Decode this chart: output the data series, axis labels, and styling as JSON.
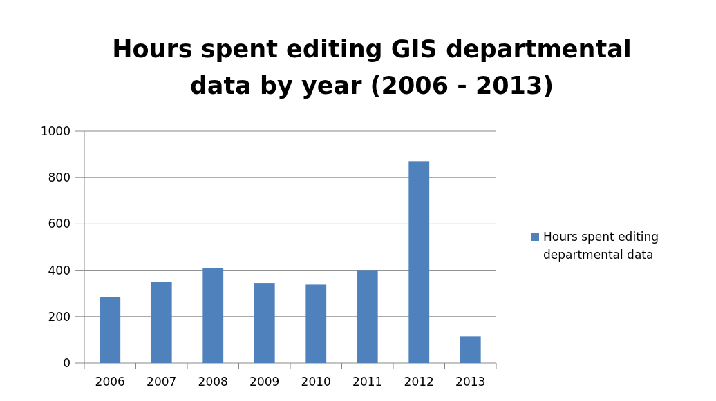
{
  "chart_data": {
    "type": "bar",
    "title": "Hours spent editing GIS departmental data by year (2006 - 2013)",
    "categories": [
      "2006",
      "2007",
      "2008",
      "2009",
      "2010",
      "2011",
      "2012",
      "2013"
    ],
    "series": [
      {
        "name": "Hours spent editing departmental data",
        "color": "#4f81bd",
        "values": [
          285,
          351,
          410,
          345,
          338,
          401,
          871,
          115
        ]
      }
    ],
    "ylim": [
      0,
      1000
    ],
    "yticks": [
      0,
      200,
      400,
      600,
      800,
      1000
    ],
    "grid": "y",
    "legend": "right"
  }
}
